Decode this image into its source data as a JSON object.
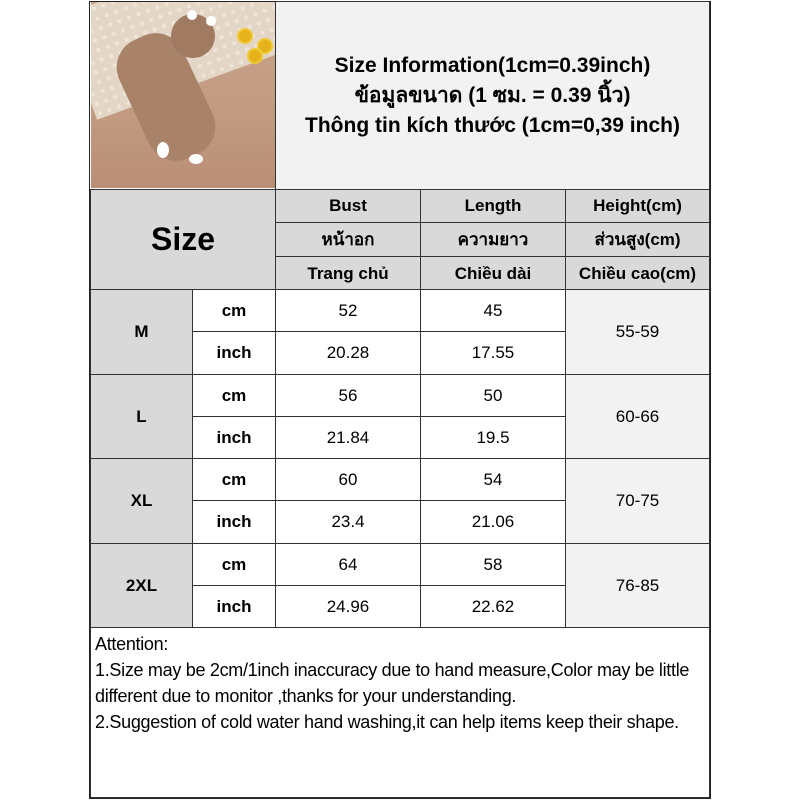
{
  "title": {
    "line1": "Size Information(1cm=0.39inch)",
    "line2": "ข้อมูลขนาด (1 ซม. = 0.39 นิ้ว)",
    "line3": "Thông tin kích thước (1cm=0,39 inch)"
  },
  "header": {
    "size_label": "Size",
    "columns": [
      {
        "en": "Bust",
        "th": "หน้าอก",
        "vi": "Trang chủ"
      },
      {
        "en": "Length",
        "th": "ความยาว",
        "vi": "Chiều dài"
      },
      {
        "en": "Height(cm)",
        "th": "ส่วนสูง(cm)",
        "vi": "Chiều cao(cm)"
      }
    ]
  },
  "rows": [
    {
      "size": "M",
      "cm_label": "cm",
      "inch_label": "inch",
      "bust_cm": "52",
      "length_cm": "45",
      "bust_inch": "20.28",
      "length_inch": "17.55",
      "height": "55-59"
    },
    {
      "size": "L",
      "cm_label": "cm",
      "inch_label": "inch",
      "bust_cm": "56",
      "length_cm": "50",
      "bust_inch": "21.84",
      "length_inch": "19.5",
      "height": "60-66"
    },
    {
      "size": "XL",
      "cm_label": "cm",
      "inch_label": "inch",
      "bust_cm": "60",
      "length_cm": "54",
      "bust_inch": "23.4",
      "length_inch": "21.06",
      "height": "70-75"
    },
    {
      "size": "2XL",
      "cm_label": "cm",
      "inch_label": "inch",
      "bust_cm": "64",
      "length_cm": "58",
      "bust_inch": "24.96",
      "length_inch": "22.62",
      "height": "76-85"
    }
  ],
  "attention": {
    "heading": "Attention:",
    "note1": "1.Size may be 2cm/1inch inaccuracy due to hand measure,Color may be little different due to monitor ,thanks for your understanding.",
    "note2": "2.Suggestion of cold water hand washing,it can help items keep their shape."
  },
  "colors": {
    "header_bg": "#d9d9d9",
    "title_bg": "#f2f2f2",
    "border": "#333333"
  }
}
